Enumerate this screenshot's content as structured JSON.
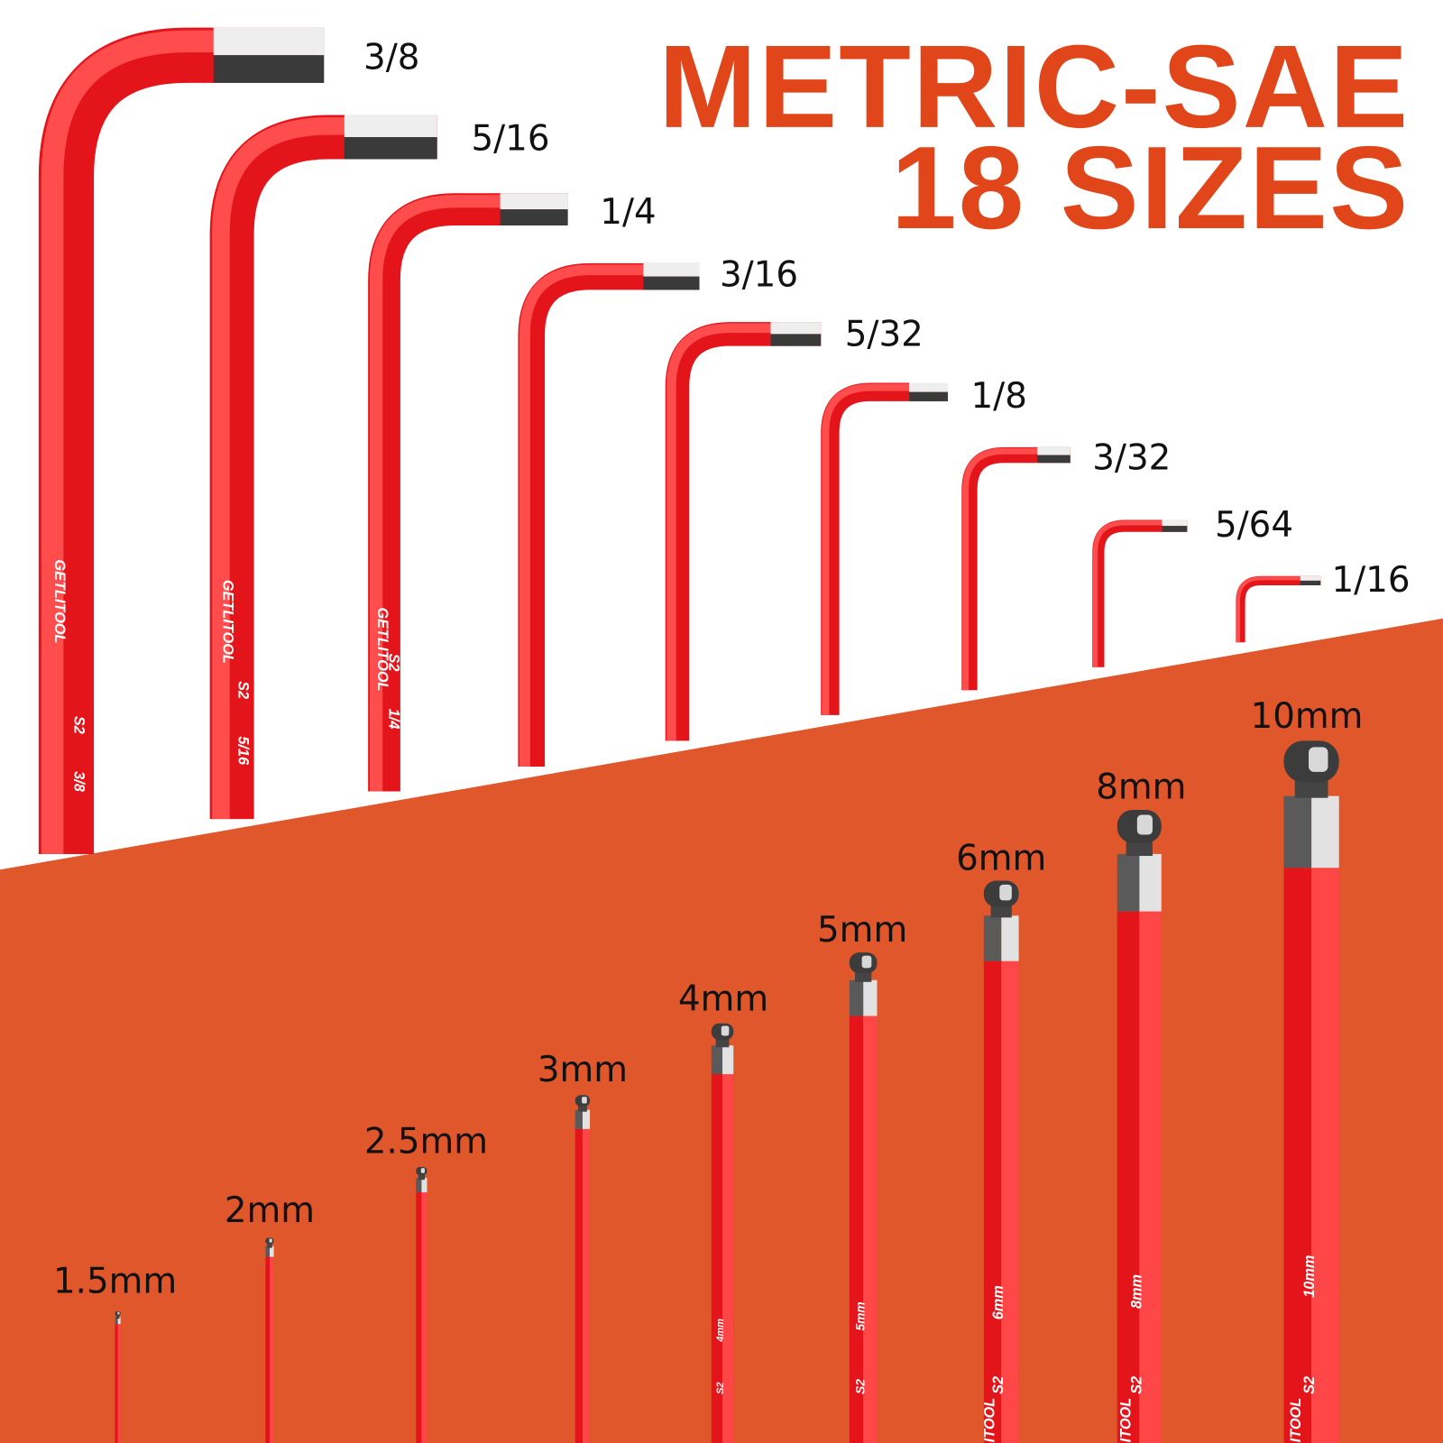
{
  "title": {
    "line1": "METRIC-SAE",
    "line2": "18 SIZES"
  },
  "engraving": {
    "brand": "GETLITOOL",
    "steel": "S2"
  },
  "sae": [
    {
      "label": "3/8"
    },
    {
      "label": "5/16"
    },
    {
      "label": "1/4"
    },
    {
      "label": "3/16"
    },
    {
      "label": "5/32"
    },
    {
      "label": "1/8"
    },
    {
      "label": "3/32"
    },
    {
      "label": "5/64"
    },
    {
      "label": "1/16"
    }
  ],
  "metric": [
    {
      "label": "1.5mm"
    },
    {
      "label": "2mm"
    },
    {
      "label": "2.5mm"
    },
    {
      "label": "3mm"
    },
    {
      "label": "4mm"
    },
    {
      "label": "5mm"
    },
    {
      "label": "6mm"
    },
    {
      "label": "8mm"
    },
    {
      "label": "10mm"
    }
  ]
}
